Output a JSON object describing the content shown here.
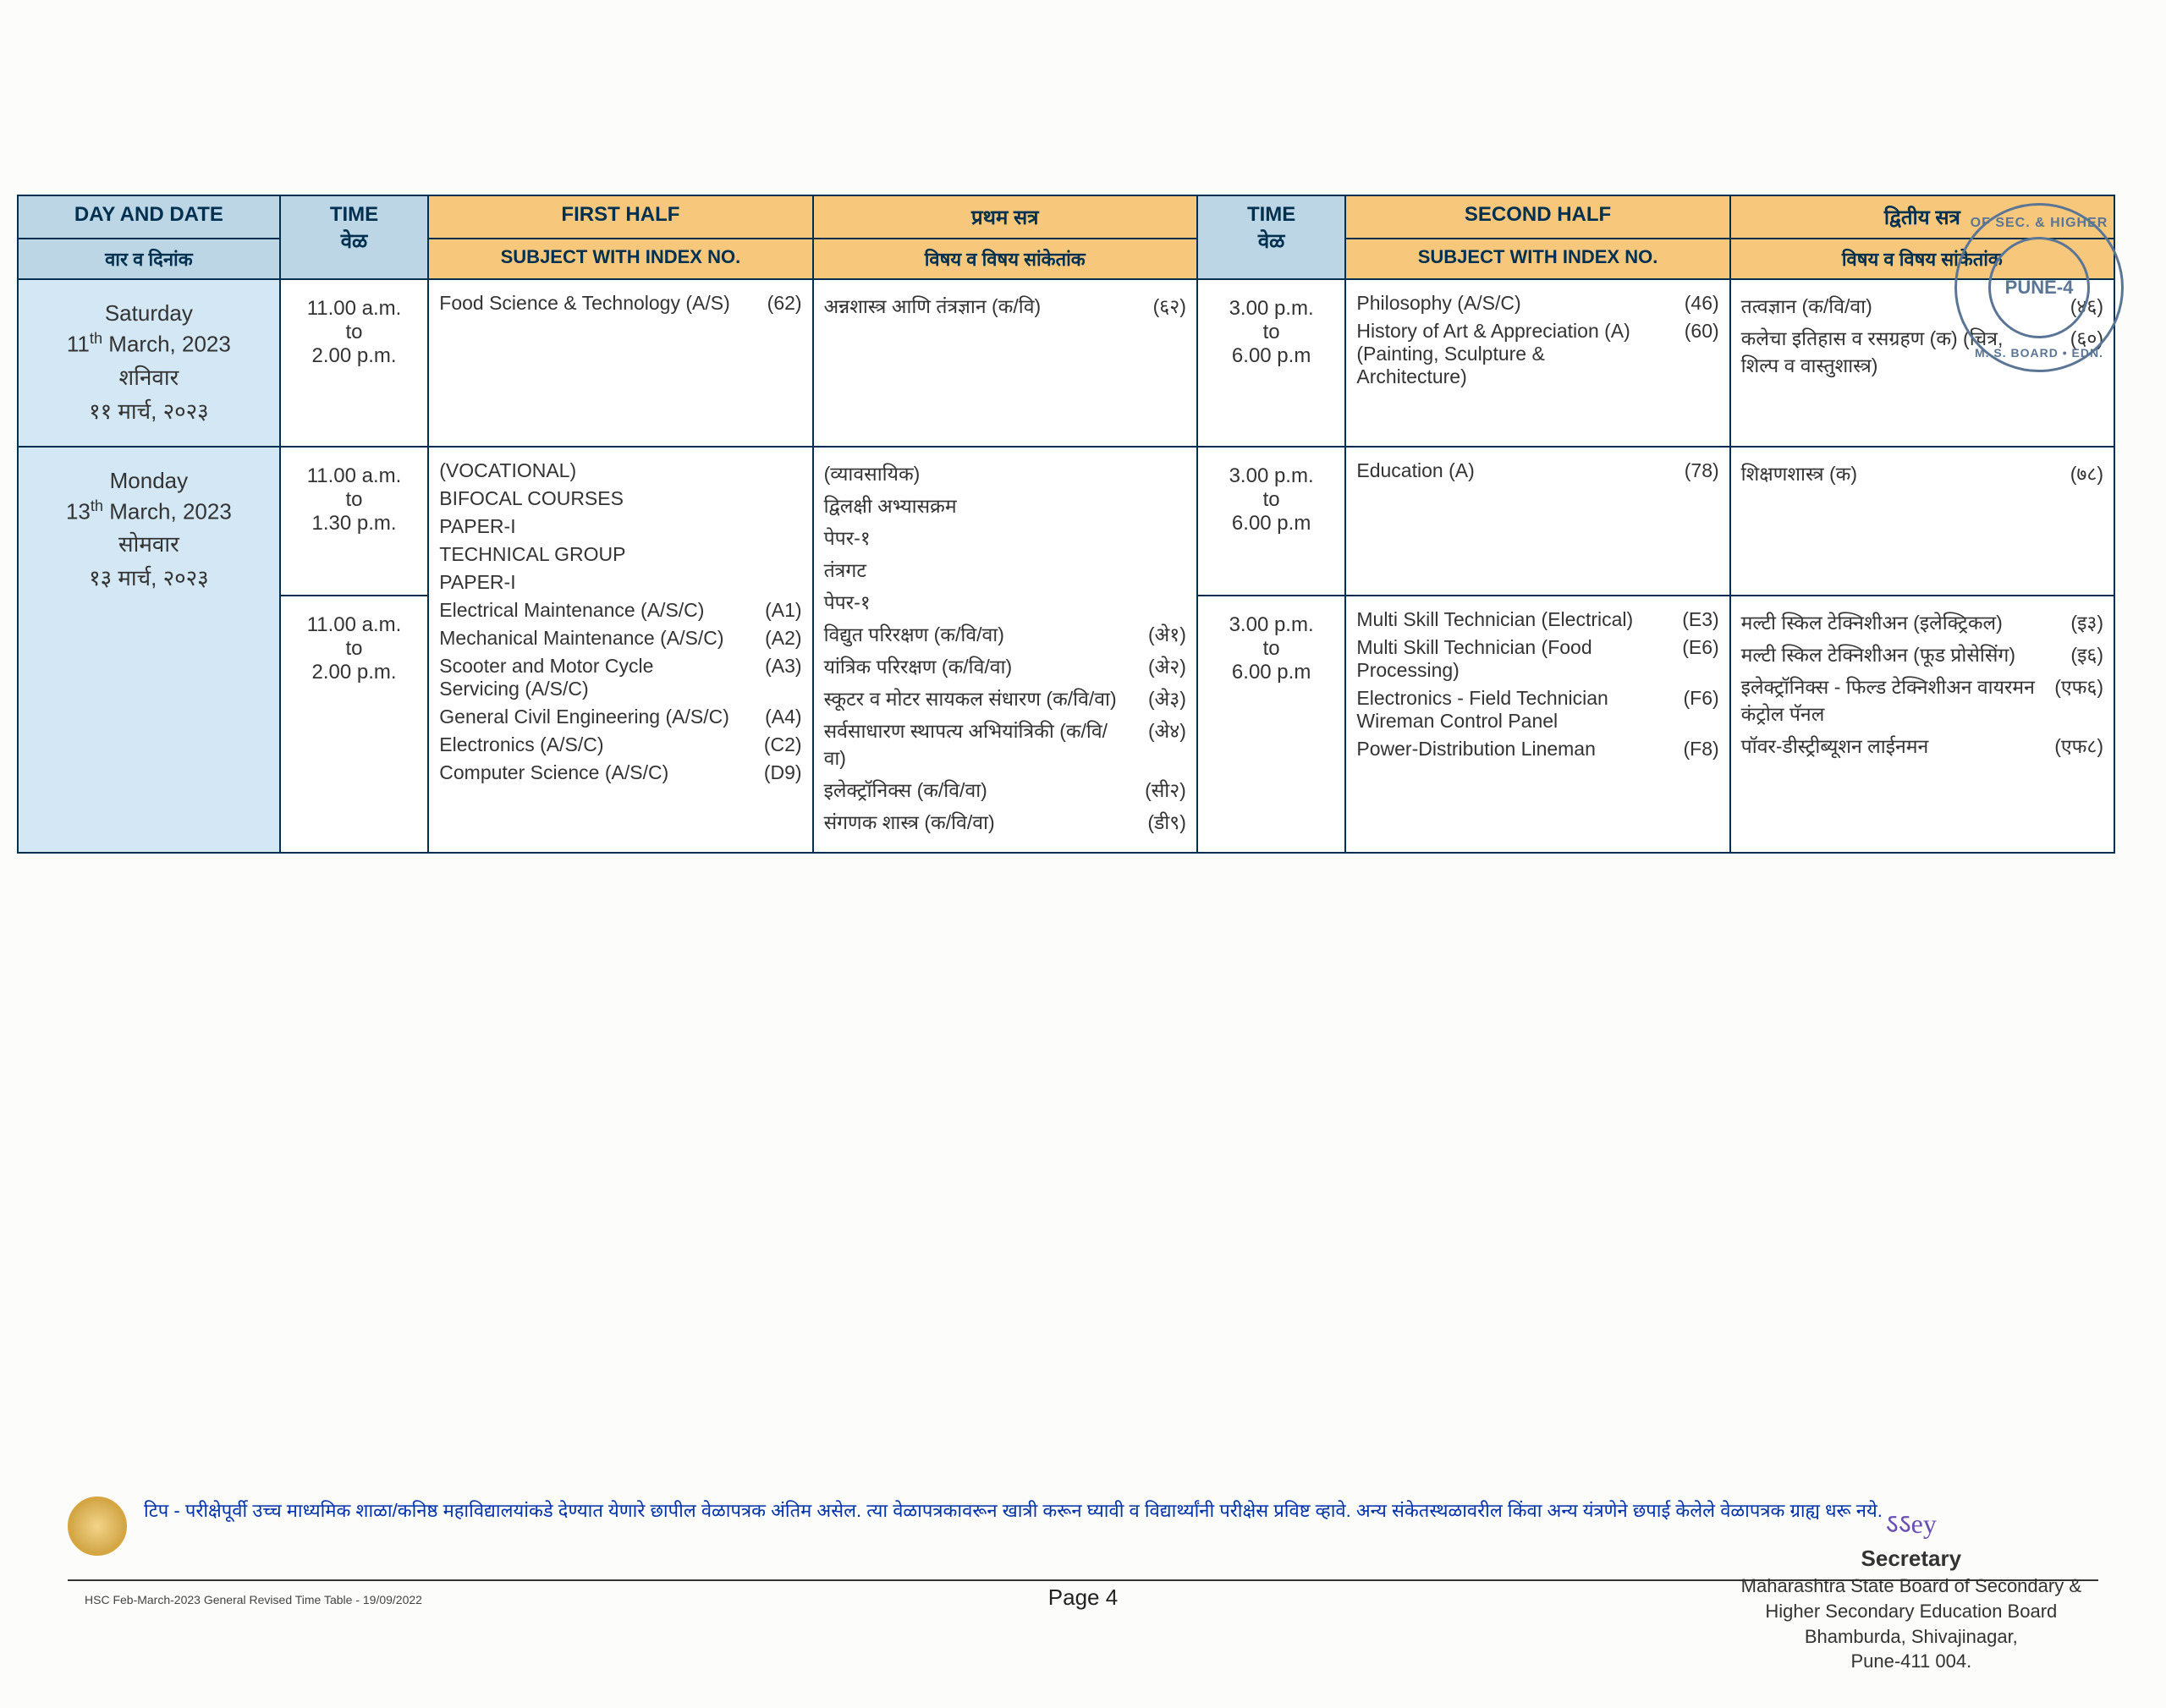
{
  "stamp": {
    "ring_top": "OF SEC. & HIGHER",
    "center": "PUNE-4",
    "ring_bottom": "M. S. BOARD • EDN."
  },
  "headers": {
    "day_en": "DAY AND DATE",
    "day_mr": "वार व दिनांक",
    "time_en": "TIME",
    "time_mr": "वेळ",
    "first_half_en": "FIRST HALF",
    "first_half_mr": "प्रथम सत्र",
    "subject_en": "SUBJECT WITH INDEX NO.",
    "subject_mr": "विषय व विषय सांकेतांक",
    "second_half_en": "SECOND HALF",
    "second_half_mr": "द्वितीय सत्र"
  },
  "row1": {
    "day_en": "Saturday",
    "date_en": "11ᵗʰ March, 2023",
    "day_mr": "शनिवार",
    "date_mr": "११ मार्च, २०२३",
    "time1": {
      "l1": "11.00 a.m.",
      "l2": "to",
      "l3": "2.00 p.m."
    },
    "fh_subj": [
      {
        "name": "Food Science & Technology (A/S)",
        "code": "(62)"
      }
    ],
    "fh_mr": [
      {
        "name": "अन्नशास्त्र आणि तंत्रज्ञान (क/वि)",
        "code": "(६२)"
      }
    ],
    "time2": {
      "l1": "3.00 p.m.",
      "l2": "to",
      "l3": "6.00 p.m"
    },
    "sh_subj": [
      {
        "name": "Philosophy  (A/S/C)",
        "code": "(46)"
      },
      {
        "name": "History of Art & Appreciation (A) (Painting, Sculpture & Architecture)",
        "code": "(60)"
      }
    ],
    "sh_mr": [
      {
        "name": "तत्वज्ञान (क/वि/वा)",
        "code": "(४६)"
      },
      {
        "name": "कलेचा इतिहास व रसग्रहण (क) (चित्र, शिल्प व वास्तुशास्त्र)",
        "code": "(६०)"
      }
    ]
  },
  "row2": {
    "day_en": "Monday",
    "date_en": "13ᵗʰ March, 2023",
    "day_mr": "सोमवार",
    "date_mr": "१३ मार्च, २०२३",
    "time1a": {
      "l1": "11.00 a.m.",
      "l2": "to",
      "l3": "1.30 p.m."
    },
    "time1b": {
      "l1": "11.00 a.m.",
      "l2": "to",
      "l3": "2.00 p.m."
    },
    "fh_group_en": [
      "(VOCATIONAL)",
      "BIFOCAL COURSES",
      "PAPER-I",
      "TECHNICAL GROUP",
      "PAPER-I"
    ],
    "fh_group_mr": [
      "(व्यावसायिक)",
      "द्विलक्षी अभ्यासक्रम",
      "पेपर-१",
      "तंत्रगट",
      "पेपर-१"
    ],
    "fh_items_a": [
      {
        "name": "Electrical Maintenance (A/S/C)",
        "code": "(A1)",
        "mr": "विद्युत परिरक्षण (क/वि/वा)",
        "mcode": "(अे१)"
      },
      {
        "name": "Mechanical Maintenance (A/S/C)",
        "code": "(A2)",
        "mr": "यांत्रिक परिरक्षण (क/वि/वा)",
        "mcode": "(अे२)"
      },
      {
        "name": "Scooter and Motor Cycle Servicing (A/S/C)",
        "code": "(A3)",
        "mr": "स्कूटर व मोटर सायकल संधारण (क/वि/वा)",
        "mcode": "(अे३)"
      }
    ],
    "fh_items_b": [
      {
        "name": "General Civil Engineering (A/S/C)",
        "code": "(A4)",
        "mr": "सर्वसाधारण स्थापत्य अभियांत्रिकी (क/वि/वा)",
        "mcode": "(अे४)"
      },
      {
        "name": "Electronics (A/S/C)",
        "code": "(C2)",
        "mr": "इलेक्ट्रॉनिक्स (क/वि/वा)",
        "mcode": "(सी२)"
      },
      {
        "name": "Computer Science (A/S/C)",
        "code": "(D9)",
        "mr": "संगणक शास्त्र (क/वि/वा)",
        "mcode": "(डी९)"
      }
    ],
    "time2a": {
      "l1": "3.00 p.m.",
      "l2": "to",
      "l3": "6.00 p.m"
    },
    "time2b": {
      "l1": "3.00 p.m.",
      "l2": "to",
      "l3": "6.00 p.m"
    },
    "sh_a": [
      {
        "name": "Education (A)",
        "code": "(78)",
        "mr": "शिक्षणशास्त्र (क)",
        "mcode": "(७८)"
      }
    ],
    "sh_b": [
      {
        "name": "Multi Skill Technician (Electrical)",
        "code": "(E3)",
        "mr": "मल्टी स्किल टेक्निशीअन (इलेक्ट्रिकल)",
        "mcode": "(इ३)"
      },
      {
        "name": "Multi Skill Technician (Food Processing)",
        "code": "(E6)",
        "mr": "मल्टी स्किल टेक्निशीअन (फूड प्रोसेसिंग)",
        "mcode": "(इ६)"
      },
      {
        "name": "Electronics - Field Technician Wireman Control Panel",
        "code": "(F6)",
        "mr": "इलेक्ट्रॉनिक्स - फिल्ड टेक्निशीअन वायरमन कंट्रोल पॅनल",
        "mcode": "(एफ६)"
      },
      {
        "name": "Power-Distribution Lineman",
        "code": "(F8)",
        "mr": "पॉवर-डीस्ट्रीब्यूशन लाईनमन",
        "mcode": "(एफ८)"
      }
    ]
  },
  "note": "टिप - परीक्षेपूर्वी उच्च माध्यमिक शाळा/कनिष्ठ महाविद्यालयांकडे देण्यात येणारे छापील वेळापत्रक अंतिम असेल. त्या वेळापत्रकावरून खात्री करून घ्यावी व विद्यार्थ्यांनी परीक्षेस प्रविष्ट व्हावे. अन्य संकेतस्थळावरील किंवा अन्य यंत्रणेने छपाई केलेले वेळापत्रक ग्राह्य धरू नये.",
  "footer_left": "HSC Feb-March-2023 General Revised Time Table - 19/09/2022",
  "footer_center": "Page 4",
  "sig": {
    "signature": "ऽऽey",
    "l1": "Secretary",
    "l2": "Maharashtra State Board of Secondary &",
    "l3": "Higher Secondary Education Board",
    "l4": "Bhamburda, Shivajinagar,",
    "l5": "Pune-411 004."
  },
  "col_widths": {
    "day": 300,
    "time": 170,
    "fh_en": 440,
    "fh_mr": 440,
    "time2": 170,
    "sh_en": 440,
    "sh_mr": 440
  }
}
